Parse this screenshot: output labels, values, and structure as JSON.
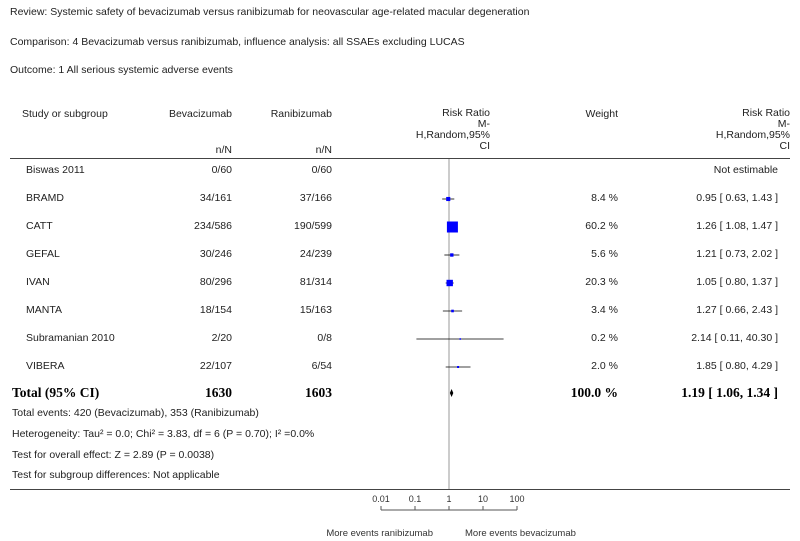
{
  "meta": {
    "review": "Review:   Systemic safety of bevacizumab versus ranibizumab for neovascular age-related macular degeneration",
    "comparison": "Comparison:   4 Bevacizumab versus ranibizumab, influence analysis: all SSAEs excluding LUCAS",
    "outcome": "Outcome:   1 All serious systemic adverse events"
  },
  "headers": {
    "study": "Study or subgroup",
    "bev": "Bevacizumab",
    "ran": "Ranibizumab",
    "nN": "n/N",
    "rr_plot_1": "Risk Ratio",
    "rr_plot_2": "M-",
    "rr_plot_3": "H,Random,95%",
    "rr_plot_4": "CI",
    "weight": "Weight",
    "rr_1": "Risk Ratio",
    "rr_2": "M-",
    "rr_3": "H,Random,95%",
    "rr_4": "CI"
  },
  "chart_data": {
    "type": "forest",
    "scale": "log",
    "x_ticks": [
      "0.01",
      "0.1",
      "1",
      "10",
      "100"
    ],
    "xlim": [
      0.01,
      100
    ],
    "x_left_label": "More events ranibizumab",
    "x_right_label": "More events bevacizumab",
    "colors": {
      "marker": "#0000ff",
      "line": "#000000",
      "axis": "#555555"
    },
    "studies": [
      {
        "name": "Biswas 2011",
        "bev": "0/60",
        "ran": "0/60",
        "weight": "",
        "rr_text": "Not estimable",
        "rr": null,
        "lo": null,
        "hi": null,
        "w": 0
      },
      {
        "name": "BRAMD",
        "bev": "34/161",
        "ran": "37/166",
        "weight": "8.4 %",
        "rr_text": "0.95 [ 0.63, 1.43 ]",
        "rr": 0.95,
        "lo": 0.63,
        "hi": 1.43,
        "w": 8.4
      },
      {
        "name": "CATT",
        "bev": "234/586",
        "ran": "190/599",
        "weight": "60.2 %",
        "rr_text": "1.26 [ 1.08, 1.47 ]",
        "rr": 1.26,
        "lo": 1.08,
        "hi": 1.47,
        "w": 60.2
      },
      {
        "name": "GEFAL",
        "bev": "30/246",
        "ran": "24/239",
        "weight": "5.6 %",
        "rr_text": "1.21 [ 0.73, 2.02 ]",
        "rr": 1.21,
        "lo": 0.73,
        "hi": 2.02,
        "w": 5.6
      },
      {
        "name": "IVAN",
        "bev": "80/296",
        "ran": "81/314",
        "weight": "20.3 %",
        "rr_text": "1.05 [ 0.80, 1.37 ]",
        "rr": 1.05,
        "lo": 0.8,
        "hi": 1.37,
        "w": 20.3
      },
      {
        "name": "MANTA",
        "bev": "18/154",
        "ran": "15/163",
        "weight": "3.4 %",
        "rr_text": "1.27 [ 0.66, 2.43 ]",
        "rr": 1.27,
        "lo": 0.66,
        "hi": 2.43,
        "w": 3.4
      },
      {
        "name": "Subramanian 2010",
        "bev": "2/20",
        "ran": "0/8",
        "weight": "0.2 %",
        "rr_text": "2.14 [ 0.11, 40.30 ]",
        "rr": 2.14,
        "lo": 0.11,
        "hi": 40.3,
        "w": 0.2
      },
      {
        "name": "VIBERA",
        "bev": "22/107",
        "ran": "6/54",
        "weight": "2.0 %",
        "rr_text": "1.85 [ 0.80, 4.29 ]",
        "rr": 1.85,
        "lo": 0.8,
        "hi": 4.29,
        "w": 2.0
      }
    ],
    "total": {
      "name": "Total (95% CI)",
      "bev": "1630",
      "ran": "1603",
      "weight": "100.0 %",
      "rr_text": "1.19 [ 1.06, 1.34 ]",
      "rr": 1.19,
      "lo": 1.06,
      "hi": 1.34
    }
  },
  "footer": {
    "total_events": "Total events: 420 (Bevacizumab), 353 (Ranibizumab)",
    "heterogeneity": "Heterogeneity: Tau² = 0.0; Chi² = 3.83, df = 6 (P = 0.70); I² =0.0%",
    "overall": "Test for overall effect: Z = 2.89 (P = 0.0038)",
    "subgroup": "Test for subgroup differences: Not applicable"
  }
}
